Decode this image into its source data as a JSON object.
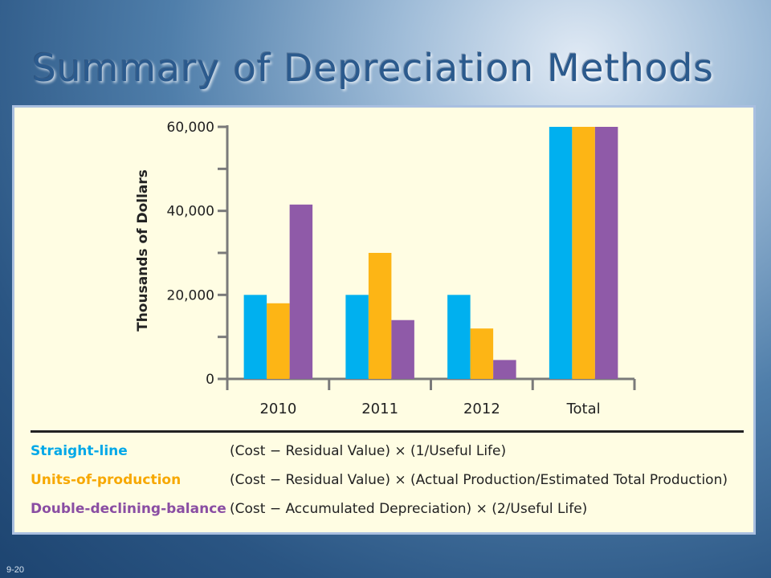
{
  "slide": {
    "title": "Summary of Depreciation Methods",
    "number": "9-20"
  },
  "chart_data": {
    "type": "bar",
    "title": "",
    "xlabel": "",
    "ylabel": "Thousands of Dollars",
    "categories": [
      "2010",
      "2011",
      "2012",
      "Total"
    ],
    "ylim": [
      0,
      60000
    ],
    "y_ticks": [
      0,
      10000,
      20000,
      30000,
      40000,
      50000,
      60000
    ],
    "y_tick_labels": [
      "0",
      "",
      "20,000",
      "",
      "40,000",
      "",
      "60,000"
    ],
    "grid": false,
    "series": [
      {
        "name": "Straight-line",
        "color": "#00b0ef",
        "values": [
          20000,
          20000,
          20000,
          60000
        ]
      },
      {
        "name": "Units-of-production",
        "color": "#fdb515",
        "values": [
          18000,
          30000,
          12000,
          60000
        ]
      },
      {
        "name": "Double-declining-balance",
        "color": "#8f5aa8",
        "values": [
          41500,
          14000,
          4500,
          60000
        ]
      }
    ]
  },
  "legend": [
    {
      "name": "Straight-line",
      "color": "#00a8e8",
      "formula": "(Cost − Residual Value) × (1/Useful Life)"
    },
    {
      "name": "Units-of-production",
      "color": "#f7a800",
      "formula": "(Cost − Residual Value) × (Actual Production/Estimated Total Production)"
    },
    {
      "name": "Double-declining-balance",
      "color": "#8a4ea3",
      "formula": "(Cost − Accumulated Depreciation) × (2/Useful Life)"
    }
  ]
}
